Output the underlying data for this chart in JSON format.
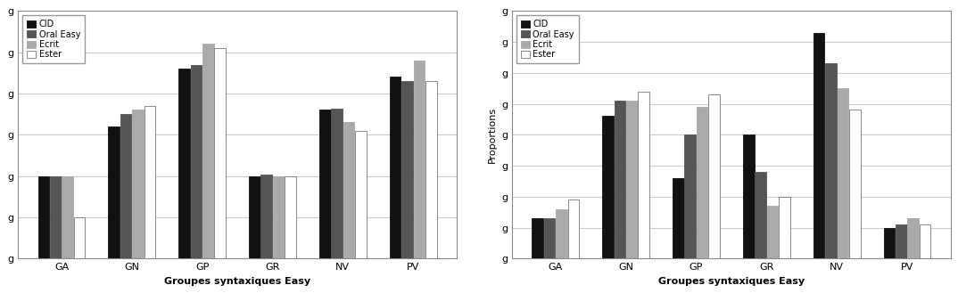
{
  "categories": [
    "GA",
    "GN",
    "GP",
    "GR",
    "NV",
    "PV"
  ],
  "series_labels": [
    "CID",
    "Oral Easy",
    "Ecrit",
    "Ester"
  ],
  "series_colors": [
    "#111111",
    "#555555",
    "#aaaaaa",
    "#ffffff"
  ],
  "series_edgecolors": [
    "#111111",
    "#555555",
    "#aaaaaa",
    "#777777"
  ],
  "left_values": {
    "CID": [
      1.0,
      1.6,
      2.3,
      1.0,
      1.8,
      2.2
    ],
    "Oral Easy": [
      1.0,
      1.75,
      2.35,
      1.02,
      1.82,
      2.15
    ],
    "Ecrit": [
      1.0,
      1.8,
      2.6,
      1.0,
      1.65,
      2.4
    ],
    "Ester": [
      0.5,
      1.85,
      2.55,
      1.0,
      1.55,
      2.15
    ]
  },
  "left_ylabel": "",
  "left_ylim": [
    0,
    3
  ],
  "left_yticks": [
    0,
    0.5,
    1.0,
    1.5,
    2.0,
    2.5,
    3.0
  ],
  "right_values": {
    "CID": [
      0.065,
      0.23,
      0.13,
      0.2,
      0.365,
      0.05
    ],
    "Oral Easy": [
      0.065,
      0.255,
      0.2,
      0.14,
      0.315,
      0.055
    ],
    "Ecrit": [
      0.08,
      0.255,
      0.245,
      0.085,
      0.275,
      0.065
    ],
    "Ester": [
      0.095,
      0.27,
      0.265,
      0.1,
      0.24,
      0.055
    ]
  },
  "right_ylabel": "Proportions",
  "right_ylim": [
    0,
    0.4
  ],
  "right_yticks": [
    0,
    0.05,
    0.1,
    0.15,
    0.2,
    0.25,
    0.3,
    0.35,
    0.4
  ],
  "xlabel": "Groupes syntaxiques Easy",
  "background_color": "#ffffff",
  "grid_color": "#cccccc",
  "bar_width": 0.16,
  "bar_gap": 0.01
}
